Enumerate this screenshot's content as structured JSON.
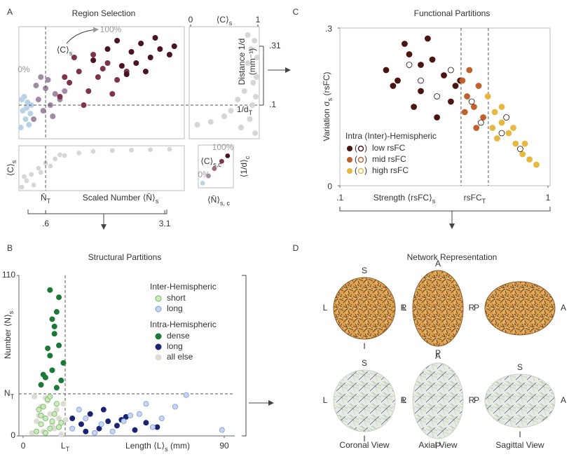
{
  "chart_data": [
    {
      "type": "scatter",
      "panel": "A",
      "title": "Region Selection",
      "xlabel": [
        "Scaled Number ⟨N̄⟩",
        "s"
      ],
      "xlim": [
        0.04,
        3.51
      ],
      "xticks": [
        {
          "value": 0.6,
          "label": ".6"
        },
        {
          "value": 3.1,
          "label": "3.1"
        }
      ],
      "x_threshold_label": [
        "N̄",
        "T"
      ],
      "ylabel": "Distance 1/d",
      "yunit": "(mm⁻¹)",
      "ylim": [
        -0.02,
        0.38
      ],
      "yticks": [
        {
          "value": 0.31,
          "label": ".31"
        },
        {
          "value": 0.1,
          "label": ".1"
        }
      ],
      "y_threshold_label": [
        "1/d",
        "T"
      ],
      "annotations": {
        "low": "0%",
        "high": "100%",
        "measure": [
          "⟨C⟩",
          "s"
        ]
      },
      "series": [
        {
          "color": "#b9d3e6",
          "x": [
            0.08,
            0.12,
            0.18,
            0.22,
            0.28,
            0.15,
            0.1,
            0.25,
            0.3,
            0.2
          ],
          "values": [
            0.02,
            0.08,
            0.05,
            0.11,
            0.07,
            0.13,
            0.12,
            0.03,
            0.1,
            0.09
          ]
        },
        {
          "color": "#a08aa6",
          "x": [
            0.35,
            0.45,
            0.55,
            0.6,
            0.7,
            0.8,
            0.9,
            0.5,
            0.65,
            0.75,
            1.0,
            0.4
          ],
          "values": [
            0.05,
            0.12,
            0.08,
            0.16,
            0.1,
            0.14,
            0.12,
            0.2,
            0.19,
            0.06,
            0.15,
            0.17
          ]
        },
        {
          "color": "#7e3448",
          "x": [
            0.9,
            1.1,
            1.3,
            1.5,
            1.7,
            1.9,
            2.1,
            1.2,
            1.6,
            2.0,
            1.4,
            1.8,
            2.3,
            1.0
          ],
          "values": [
            0.13,
            0.18,
            0.22,
            0.15,
            0.2,
            0.25,
            0.19,
            0.27,
            0.28,
            0.14,
            0.1,
            0.23,
            0.22,
            0.2
          ]
        },
        {
          "color": "#4a1222",
          "x": [
            1.6,
            1.9,
            2.2,
            2.4,
            2.6,
            2.8,
            3.0,
            3.2,
            2.1,
            2.5,
            2.9,
            3.3,
            2.3,
            2.7
          ],
          "values": [
            0.26,
            0.3,
            0.24,
            0.29,
            0.32,
            0.27,
            0.3,
            0.28,
            0.33,
            0.25,
            0.34,
            0.31,
            0.21,
            0.22
          ]
        }
      ],
      "coupling": {
        "ylabel": [
          "⟨C⟩",
          "s"
        ],
        "ylim": [
          0,
          1
        ],
        "color": "#d6d6d6",
        "x": [
          0.1,
          0.2,
          0.3,
          0.45,
          0.6,
          0.8,
          1.0,
          1.3,
          1.6,
          2.0,
          2.4,
          2.8,
          3.2,
          0.15,
          0.35,
          0.5,
          0.7,
          0.9
        ],
        "values": [
          0.05,
          0.2,
          0.35,
          0.5,
          0.62,
          0.72,
          0.8,
          0.86,
          0.9,
          0.92,
          0.93,
          0.94,
          0.95,
          0.3,
          0.1,
          0.4,
          0.55,
          0.82
        ]
      },
      "distance": {
        "xlabel": [
          "⟨C⟩",
          "s"
        ],
        "xlim": [
          0,
          1
        ],
        "xticks": [
          0,
          1
        ],
        "color": "#d6d6d6",
        "x": [
          0.95,
          0.9,
          0.85,
          0.98,
          0.8,
          0.92,
          0.7,
          0.88,
          0.96,
          0.6,
          0.75,
          0.99,
          0.93,
          0.5,
          0.3,
          0.1,
          0.85,
          0.97
        ],
        "values": [
          0.33,
          0.3,
          0.25,
          0.2,
          0.15,
          0.1,
          0.12,
          0.05,
          0.0,
          0.08,
          0.02,
          0.27,
          0.18,
          0.06,
          0.04,
          0.03,
          0.35,
          0.13
        ]
      },
      "centroids": {
        "xlabel": [
          "⟨N̄⟩",
          "s, c"
        ],
        "ylabel": [
          "⟨1/d⟩",
          "c"
        ],
        "annotation": [
          "⟨C⟩",
          "s,c"
        ],
        "low": "0%",
        "high": "100%",
        "xlim": [
          0,
          1
        ],
        "ylim": [
          0,
          1
        ],
        "colors": [
          "#b9d3e6",
          "#a08aa6",
          "#9a6a80",
          "#7e3448",
          "#4a1222"
        ],
        "x": [
          0.05,
          0.25,
          0.45,
          0.7,
          0.9
        ],
        "values": [
          0.05,
          0.25,
          0.45,
          0.65,
          0.8
        ]
      }
    },
    {
      "type": "scatter",
      "panel": "B",
      "title": "Structural Partitions",
      "xlabel": [
        "Length ⟨L⟩",
        "s",
        " (mm)"
      ],
      "ylabel": [
        "Number ⟨N⟩",
        "s"
      ],
      "xlim": [
        -1.9,
        94.7
      ],
      "xticks": [
        0,
        90
      ],
      "ylim": [
        0,
        110
      ],
      "yticks": [
        0,
        110
      ],
      "x_threshold": 18.8,
      "x_threshold_label": [
        "L",
        "T"
      ],
      "y_threshold": 28.8,
      "y_threshold_label": [
        "N",
        "T"
      ],
      "groups": [
        {
          "title": "Inter-Hemispheric",
          "series": [
            {
              "name": "short",
              "color": "#cde8bd",
              "edgecolor": "#6ab85a",
              "x": [
                6,
                8,
                10,
                12,
                14,
                9,
                11,
                7,
                13,
                15,
                16,
                10,
                12,
                8,
                17
              ],
              "values": [
                3,
                8,
                12,
                5,
                15,
                20,
                25,
                18,
                10,
                22,
                6,
                2,
                27,
                14,
                9
              ]
            },
            {
              "name": "long",
              "color": "#c6d6f0",
              "edgecolor": "#7a9ad8",
              "x": [
                22,
                28,
                35,
                40,
                45,
                52,
                58,
                62,
                68,
                73,
                89,
                48,
                32,
                25,
                55
              ],
              "values": [
                5,
                12,
                8,
                3,
                10,
                15,
                6,
                12,
                20,
                28,
                4,
                14,
                2,
                18,
                22
              ]
            }
          ]
        },
        {
          "title": "Intra-Hemispheric",
          "series": [
            {
              "name": "dense",
              "color": "#1a7838",
              "edgecolor": "#1a7838",
              "x": [
                10,
                12,
                14,
                15,
                16,
                18,
                8,
                11,
                13,
                17,
                14,
                12,
                16,
                15,
                9,
                13
              ],
              "values": [
                40,
                55,
                70,
                85,
                95,
                50,
                35,
                60,
                45,
                38,
                75,
                100,
                62,
                33,
                42,
                80
              ]
            },
            {
              "name": "long",
              "color": "#1b2474",
              "edgecolor": "#1b2474",
              "x": [
                22,
                26,
                30,
                34,
                38,
                42,
                46,
                50,
                55,
                60,
                28,
                36,
                44
              ],
              "values": [
                12,
                8,
                15,
                5,
                10,
                7,
                13,
                4,
                9,
                6,
                3,
                18,
                11
              ]
            },
            {
              "name": "all else",
              "color": "#dddbd2",
              "edgecolor": "#dddbd2",
              "x": [
                4,
                6,
                8,
                10,
                12,
                14,
                16,
                18,
                5,
                7,
                9,
                11,
                13,
                15,
                17,
                19
              ],
              "values": [
                2,
                10,
                20,
                26,
                15,
                5,
                12,
                22,
                27,
                14,
                3,
                24,
                8,
                18,
                1,
                11
              ]
            }
          ]
        }
      ]
    },
    {
      "type": "scatter",
      "panel": "C",
      "title": "Functional Partitions",
      "xlabel": [
        "Strength ⟨rsFC⟩",
        "s"
      ],
      "ylabel": [
        "Variation σ",
        "s",
        " (rsFC)"
      ],
      "xlim": [
        0.1,
        1
      ],
      "xticks": [
        {
          "value": 0.1,
          "label": ".1"
        },
        1
      ],
      "ylim": [
        0,
        0.3
      ],
      "yticks": [
        0,
        {
          "value": 0.3,
          "label": ".3"
        }
      ],
      "thresholds": [
        0.624,
        0.742
      ],
      "threshold_label": [
        "rsFC",
        "T"
      ],
      "legend_title": "Intra (Inter)-Hemispheric",
      "legend_brackets": [
        "(",
        ")"
      ],
      "series": [
        {
          "name": "low rsFC",
          "color": "#4a1410",
          "x": [
            0.3,
            0.35,
            0.4,
            0.45,
            0.5,
            0.55,
            0.6,
            0.38,
            0.48,
            0.58,
            0.42,
            0.52,
            0.33,
            0.62,
            0.45
          ],
          "values": [
            0.22,
            0.2,
            0.25,
            0.18,
            0.24,
            0.21,
            0.19,
            0.27,
            0.28,
            0.16,
            0.15,
            0.13,
            0.19,
            0.2,
            0.23
          ],
          "open_x": [
            0.45,
            0.52,
            0.58,
            0.4
          ],
          "open_values": [
            0.2,
            0.17,
            0.22,
            0.23
          ]
        },
        {
          "name": "mid rsFC",
          "color": "#c0602c",
          "x": [
            0.63,
            0.65,
            0.68,
            0.7,
            0.72,
            0.66,
            0.69,
            0.64
          ],
          "values": [
            0.2,
            0.17,
            0.15,
            0.19,
            0.13,
            0.22,
            0.11,
            0.14
          ],
          "open_x": [
            0.67,
            0.71
          ],
          "open_values": [
            0.16,
            0.12
          ]
        },
        {
          "name": "high rsFC",
          "color": "#e6b840",
          "x": [
            0.74,
            0.77,
            0.8,
            0.83,
            0.86,
            0.89,
            0.92,
            0.95,
            0.76,
            0.8,
            0.85,
            0.9,
            0.78
          ],
          "values": [
            0.17,
            0.14,
            0.12,
            0.1,
            0.08,
            0.06,
            0.05,
            0.04,
            0.11,
            0.15,
            0.11,
            0.08,
            0.09
          ],
          "open_x": [
            0.82,
            0.88,
            0.8
          ],
          "open_values": [
            0.13,
            0.07,
            0.1
          ]
        }
      ]
    }
  ],
  "panel_d": {
    "panel": "D",
    "title": "Network Representation",
    "views": [
      {
        "caption": "Coronal View",
        "functional": {
          "top": "S",
          "left": "L",
          "right": "R",
          "bottom": "I"
        },
        "structural": {
          "top": "S",
          "left": "L",
          "right": "R",
          "bottom": "I"
        }
      },
      {
        "caption": "Axial View",
        "functional": {
          "top": "A",
          "left": "L",
          "right": "R",
          "bottom": "P"
        },
        "structural": {
          "top": "A",
          "left": "L",
          "right": "R",
          "bottom": "P"
        }
      },
      {
        "caption": "Sagittal View",
        "functional": {
          "left": "P",
          "right": "A"
        },
        "structural": {
          "top": "S",
          "left": "P",
          "right": "A",
          "bottom": "I"
        }
      }
    ]
  }
}
